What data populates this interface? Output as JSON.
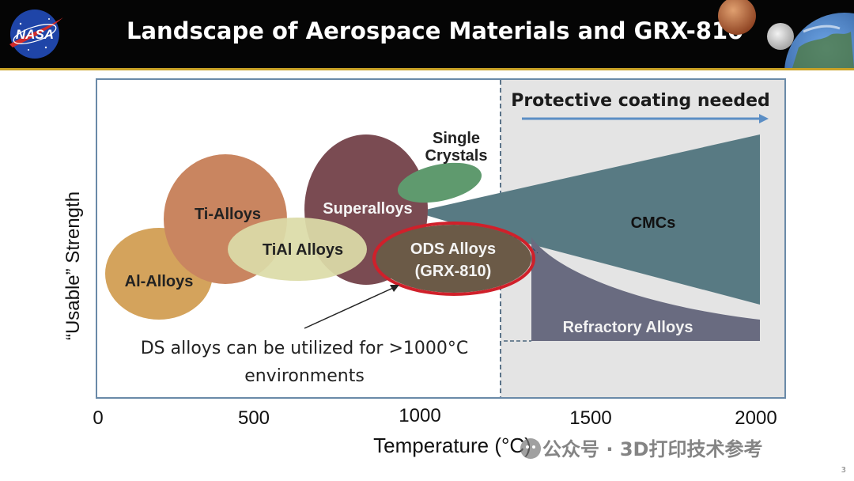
{
  "header": {
    "logo_text": "NASA",
    "title": "Landscape of Aerospace Materials and GRX-810"
  },
  "diagram": {
    "coating_banner": "Protective coating needed",
    "x_axis_label": "Temperature (°C)",
    "y_axis_label": "“Usable” Strength",
    "x_ticks": [
      "0",
      "500",
      "1000",
      "1500",
      "2000"
    ],
    "regions": {
      "al_alloys": "Al-Alloys",
      "ti_alloys": "Ti-Alloys",
      "tial_alloys": "TiAl Alloys",
      "superalloys": "Superalloys",
      "single_crystals_line1": "Single",
      "single_crystals_line2": "Crystals",
      "ods_alloys_line1": "ODS Alloys",
      "ods_alloys_line2": "(GRX-810)",
      "cmcs": "CMCs",
      "refractory_alloys": "Refractory Alloys"
    },
    "annotation_line1": "DS alloys can be utilized for >1000°C",
    "annotation_line2": "environments"
  },
  "watermark": "公众号 · 3D打印技术参考",
  "page_number": "3",
  "colors": {
    "al_alloys": "#d4a35c",
    "ti_alloys": "#c98560",
    "tial_alloys": "#dcdca8",
    "superalloys": "#7a4b52",
    "single_crystals": "#5f9a6e",
    "ods_alloys": "#6b5a47",
    "ods_highlight": "#d0202a",
    "cmcs": "#587a83",
    "refractory_alloys": "#696b80",
    "coating_zone": "#e4e4e4",
    "frame": "#6a8aa8",
    "arrow": "#5b8ec5"
  }
}
